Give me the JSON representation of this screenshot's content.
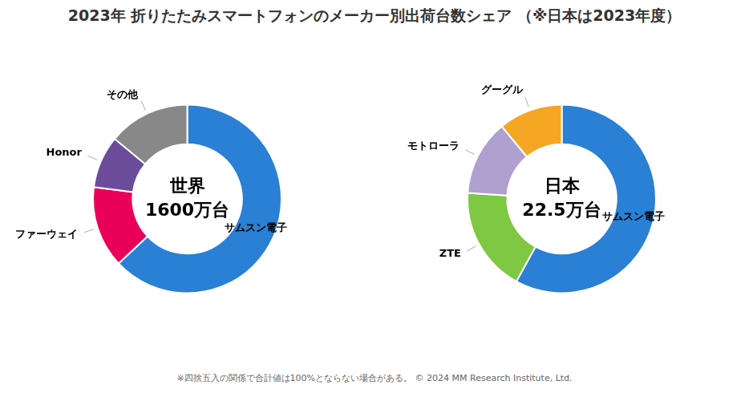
{
  "title": "2023年 折りたたみスマートフォンのメーカー別出荷台数シェア （※日本は2023年度）",
  "annotations": [
    "※四捨五入の関係で合計値は100%とならない場合がある。  © 2024 MM Research Institute, Ltd."
  ],
  "chart_data": [
    {
      "type": "doughnut",
      "annotations": [
        "世界",
        "1600万台"
      ],
      "categories": [
        "サムスン電子",
        "ファーウェイ",
        "Honor",
        "その他"
      ],
      "values": [
        63,
        14,
        9,
        14
      ],
      "colors": [
        "#2980d4",
        "#e8005a",
        "#6b4c9a",
        "#888888"
      ]
    },
    {
      "type": "doughnut",
      "annotations": [
        "日本",
        "22.5万台"
      ],
      "categories": [
        "サムスン電子",
        "ZTE",
        "モトローラ",
        "グーグル"
      ],
      "values": [
        58,
        18,
        13,
        11
      ],
      "colors": [
        "#2980d4",
        "#7ec843",
        "#b0a0d0",
        "#f5a623"
      ]
    }
  ]
}
